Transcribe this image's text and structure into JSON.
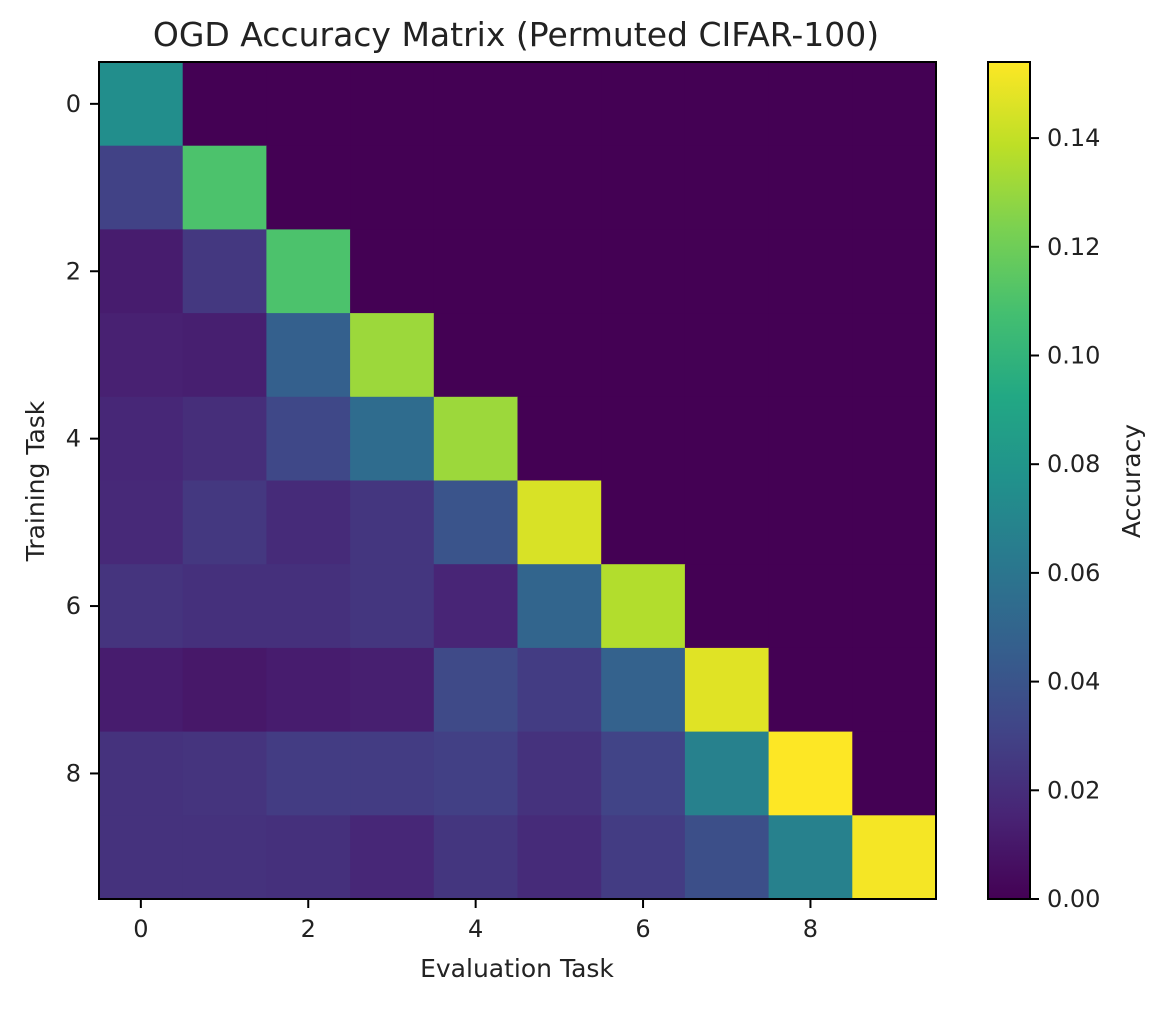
{
  "chart_data": {
    "type": "heatmap",
    "title": "OGD Accuracy Matrix (Permuted CIFAR-100)",
    "xlabel": "Evaluation Task",
    "ylabel": "Training Task",
    "colorbar_label": "Accuracy",
    "colormap": "viridis",
    "vmin": 0.0,
    "vmax": 0.154,
    "rows": [
      "0",
      "1",
      "2",
      "3",
      "4",
      "5",
      "6",
      "7",
      "8",
      "9"
    ],
    "cols": [
      "0",
      "1",
      "2",
      "3",
      "4",
      "5",
      "6",
      "7",
      "8",
      "9"
    ],
    "x_ticks": [
      "0",
      "2",
      "4",
      "6",
      "8"
    ],
    "y_ticks": [
      "0",
      "2",
      "4",
      "6",
      "8"
    ],
    "colorbar_ticks": [
      "0.00",
      "0.02",
      "0.04",
      "0.06",
      "0.08",
      "0.10",
      "0.12",
      "0.14"
    ],
    "matrix": [
      [
        0.075,
        0,
        0,
        0,
        0,
        0,
        0,
        0,
        0,
        0
      ],
      [
        0.03,
        0.11,
        0,
        0,
        0,
        0,
        0,
        0,
        0,
        0
      ],
      [
        0.012,
        0.025,
        0.11,
        0,
        0,
        0,
        0,
        0,
        0,
        0
      ],
      [
        0.014,
        0.013,
        0.047,
        0.131,
        0,
        0,
        0,
        0,
        0,
        0
      ],
      [
        0.017,
        0.02,
        0.033,
        0.054,
        0.131,
        0,
        0,
        0,
        0,
        0
      ],
      [
        0.018,
        0.025,
        0.019,
        0.024,
        0.04,
        0.145,
        0,
        0,
        0,
        0
      ],
      [
        0.023,
        0.021,
        0.021,
        0.024,
        0.016,
        0.05,
        0.136,
        0,
        0,
        0
      ],
      [
        0.012,
        0.01,
        0.012,
        0.013,
        0.034,
        0.027,
        0.048,
        0.147,
        0,
        0
      ],
      [
        0.022,
        0.023,
        0.027,
        0.027,
        0.029,
        0.022,
        0.031,
        0.067,
        0.154,
        0
      ],
      [
        0.022,
        0.022,
        0.021,
        0.017,
        0.024,
        0.019,
        0.027,
        0.037,
        0.067,
        0.152
      ]
    ]
  }
}
